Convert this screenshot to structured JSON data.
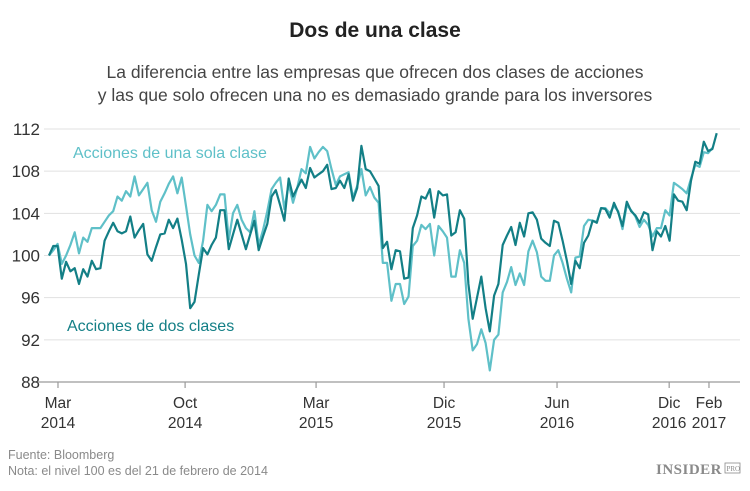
{
  "chart_data": {
    "type": "line",
    "title": "Dos de una clase",
    "subtitle": [
      "La diferencia entre las empresas que ofrecen dos clases de acciones",
      "y las que solo ofrecen una no es demasiado grande para los inversores"
    ],
    "xlabel": "",
    "ylabel": "",
    "x_start": "2014-02-21",
    "x_frequency": "weekly",
    "ylim": [
      88,
      112
    ],
    "yticks": [
      "112",
      "108",
      "104",
      "100",
      "96",
      "92",
      "88"
    ],
    "xticks": [
      {
        "month": "Mar",
        "year": "2014"
      },
      {
        "month": "Oct",
        "year": "2014"
      },
      {
        "month": "Mar",
        "year": "2015"
      },
      {
        "month": "Dic",
        "year": "2015"
      },
      {
        "month": "Jun",
        "year": "2016"
      },
      {
        "month": "Dic",
        "year": "2016"
      },
      {
        "month": "Feb",
        "year": "2017"
      }
    ],
    "grid": true,
    "series": [
      {
        "name": "Acciones de una sola clase",
        "color": "#5fc0c8",
        "values": [
          100,
          100.5,
          101.1,
          99.2,
          100,
          101,
          102.2,
          100.2,
          101.7,
          101.3,
          102.6,
          102.6,
          102.6,
          103.2,
          103.8,
          104.2,
          105.6,
          105.2,
          106.1,
          105.6,
          107.5,
          105.7,
          106.3,
          106.9,
          104.3,
          103.2,
          105.1,
          105.9,
          106.8,
          107.5,
          105.9,
          107.4,
          104.7,
          102,
          100,
          99.3,
          101.4,
          104.8,
          104.2,
          104.8,
          105.8,
          105.8,
          101.5,
          104,
          104.8,
          103.4,
          102.6,
          102.2,
          104.2,
          101,
          102.4,
          104.2,
          106.3,
          106.9,
          107.4,
          104.4,
          106.8,
          105,
          106.4,
          108.2,
          107.8,
          110.3,
          109.2,
          109.8,
          110.3,
          109.9,
          108.2,
          106.7,
          107.5,
          107.7,
          107.9,
          105.5,
          106.6,
          108.2,
          105.7,
          106.5,
          105.5,
          105,
          99.3,
          99.3,
          95.7,
          97.3,
          97.3,
          95.4,
          96.1,
          100.9,
          101.4,
          102.9,
          102.5,
          103,
          100,
          102.8,
          102.3,
          101.7,
          98,
          98,
          100.5,
          99.3,
          94,
          91,
          91.6,
          93,
          91.7,
          89.1,
          92,
          92.5,
          96.5,
          97.5,
          98.9,
          97.2,
          98.3,
          97.2,
          100.4,
          101.4,
          100.3,
          98,
          97.6,
          97.6,
          100,
          100.5,
          99.3,
          97.8,
          96.5,
          99.8,
          99.9,
          102.8,
          103.4,
          103.3,
          103.2,
          104.5,
          104.5,
          104,
          104.7,
          104.2,
          102.5,
          104.8,
          104.3,
          103.7,
          102.7,
          103.4,
          102.9,
          101.8,
          102.6,
          102.6,
          104.3,
          103.8,
          106.9,
          106.6,
          106.3,
          105.9,
          107.3,
          108.6,
          108.4,
          109.8,
          109.7,
          110.2
        ]
      },
      {
        "name": "Acciones de dos clases",
        "color": "#137f86",
        "values": [
          100,
          100.9,
          100.9,
          97.8,
          99.4,
          98.5,
          98.8,
          97.3,
          98.7,
          98,
          99.5,
          98.7,
          98.8,
          101.4,
          102.3,
          103.1,
          102.3,
          102.1,
          102.3,
          103.7,
          101.7,
          102.4,
          103,
          100.1,
          99.5,
          100.8,
          102,
          102.1,
          103.4,
          102.6,
          103.5,
          101.5,
          99.2,
          95,
          95.6,
          98.2,
          100.7,
          100.1,
          101,
          101.7,
          104.3,
          104.3,
          100.6,
          102,
          103.4,
          102,
          100.6,
          102,
          103.3,
          100.5,
          101.8,
          103,
          105.6,
          106.2,
          104.8,
          103.3,
          107.3,
          105.6,
          106.4,
          107.2,
          106.4,
          108.3,
          107.4,
          107.7,
          108,
          108.6,
          106.3,
          106.4,
          107.1,
          106.4,
          107.7,
          105.2,
          106.4,
          110.4,
          108.2,
          108,
          107.3,
          106.6,
          100.7,
          101.3,
          98.7,
          100.5,
          100.4,
          97.8,
          97.9,
          102.6,
          103.8,
          105.6,
          105.4,
          106.3,
          103.6,
          106.1,
          105.7,
          105.8,
          101.9,
          102.2,
          104.3,
          103.5,
          97.3,
          94,
          96,
          98,
          95,
          92.8,
          96.2,
          97.3,
          101,
          101.9,
          102.7,
          101,
          103.1,
          101.8,
          104,
          104.1,
          103.4,
          101.6,
          101.2,
          100.9,
          103.3,
          103.1,
          101.4,
          99.5,
          97.3,
          99.5,
          98.8,
          101.2,
          101.9,
          103.3,
          103.1,
          104.5,
          104.4,
          103.6,
          105,
          104.1,
          102.8,
          105.1,
          104.2,
          103.8,
          103.1,
          104.1,
          103.9,
          100.5,
          102.3,
          101.8,
          102.8,
          101.4,
          105.8,
          105.2,
          105.1,
          104.3,
          107.1,
          108.9,
          108.7,
          110.8,
          109.9,
          110.1,
          111.6
        ]
      }
    ]
  },
  "footer": {
    "source": "Fuente: Bloomberg",
    "note": "Nota: el nivel 100 es del 21 de febrero de 2014",
    "logo": "INSIDER",
    "logo_suffix": "PRO"
  }
}
